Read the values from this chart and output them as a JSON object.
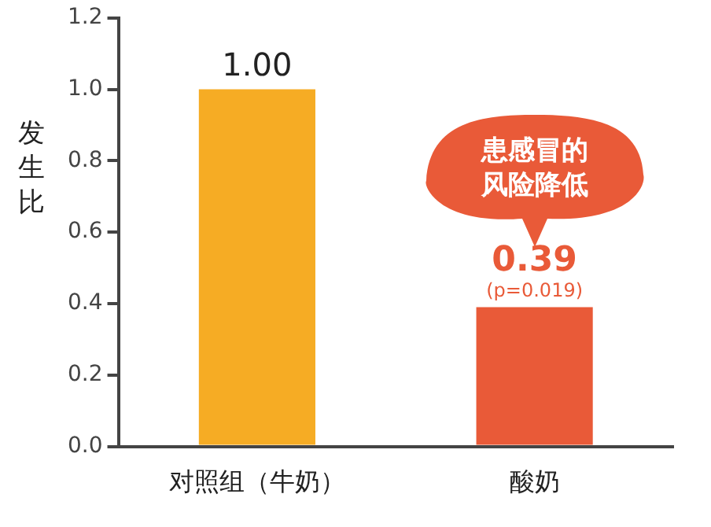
{
  "chart_data": {
    "type": "bar",
    "ylabel": "发生比",
    "categories": [
      "对照组（牛奶）",
      "酸奶"
    ],
    "values": [
      1.0,
      0.39
    ],
    "value_labels": [
      "1.00",
      "0.39"
    ],
    "colors": [
      "#f6ac24",
      "#e95a38"
    ],
    "ylim": [
      0,
      1.2
    ],
    "yticks": [
      {
        "value": 0,
        "label": "0.0"
      },
      {
        "value": 0.2,
        "label": "0.2"
      },
      {
        "value": 0.4,
        "label": "0.4"
      },
      {
        "value": 0.6,
        "label": "0.6"
      },
      {
        "value": 0.8,
        "label": "0.8"
      },
      {
        "value": 1,
        "label": "1.0"
      },
      {
        "value": 1.2,
        "label": "1.2"
      }
    ],
    "grid": false,
    "legend": false,
    "annotations": [
      "患感冒的风险降低",
      "(p=0.019)"
    ]
  }
}
